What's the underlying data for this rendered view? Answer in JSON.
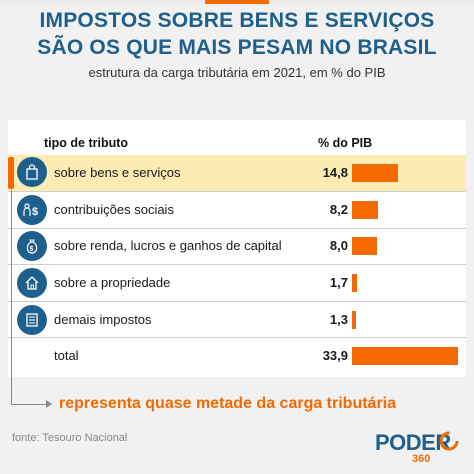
{
  "header": {
    "title_line1": "IMPOSTOS SOBRE BENS E SERVIÇOS",
    "title_line2": "SÃO OS QUE MAIS PESAM NO BRASIL",
    "subtitle": "estrutura da carga tributária em 2021, em % do PIB"
  },
  "chart_data": {
    "type": "bar",
    "columns": {
      "category": "tipo de tributo",
      "value": "% do PIB"
    },
    "categories": [
      "sobre bens e serviços",
      "contribuições sociais",
      "sobre renda, lucros e ganhos de capital",
      "sobre a propriedade",
      "demais impostos",
      "total"
    ],
    "values": [
      14.8,
      8.2,
      8.0,
      1.7,
      1.3,
      33.9
    ],
    "value_labels": [
      "14,8",
      "8,2",
      "8,0",
      "1,7",
      "1,3",
      "33,9"
    ],
    "highlighted": "sobre bens e serviços",
    "bar_color": "#f56a00"
  },
  "rows": [
    {
      "icon": "shopping-bag-icon"
    },
    {
      "icon": "people-money-icon"
    },
    {
      "icon": "money-bag-icon"
    },
    {
      "icon": "house-icon"
    },
    {
      "icon": "document-icon"
    },
    {
      "icon": ""
    }
  ],
  "annotation": "representa quase metade da carga tributária",
  "source": "fonte: Tesouro Nacional",
  "logo": {
    "word": "PODER",
    "number": "360"
  },
  "colors": {
    "accent": "#f56a00",
    "brand_blue": "#1f5f8b",
    "highlight_row": "#fdebb4"
  }
}
